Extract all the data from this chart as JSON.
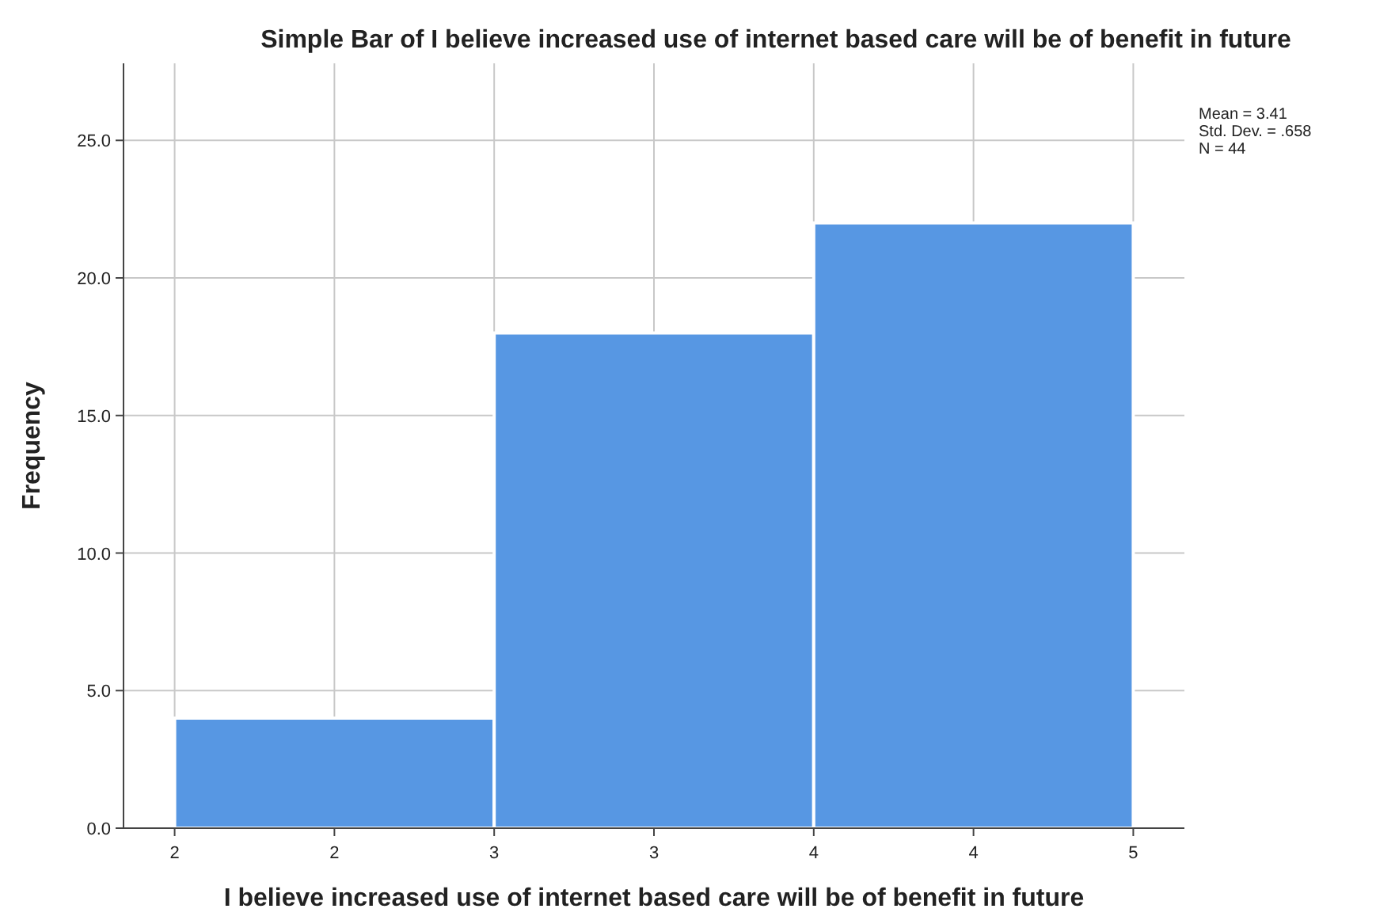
{
  "chart_data": {
    "type": "histogram",
    "title": "Simple Bar of I believe increased use of internet based care will be of benefit in future",
    "xlabel": "I believe increased use of internet based care will be of benefit in future",
    "ylabel": "Frequency",
    "bins": [
      2,
      3,
      4,
      5
    ],
    "values": [
      4,
      18,
      22
    ],
    "color": "#5797e3",
    "xlim": [
      1.84,
      5.16
    ],
    "xticks": [
      {
        "value": 2,
        "label": "2"
      },
      {
        "value": 2.5,
        "label": "2"
      },
      {
        "value": 3,
        "label": "3"
      },
      {
        "value": 3.5,
        "label": "3"
      },
      {
        "value": 4,
        "label": "4"
      },
      {
        "value": 4.5,
        "label": "4"
      },
      {
        "value": 5,
        "label": "5"
      }
    ],
    "ylim": [
      0,
      27.8
    ],
    "yticks": [
      {
        "value": 0,
        "label": "0.0"
      },
      {
        "value": 5,
        "label": "5.0"
      },
      {
        "value": 10,
        "label": "10.0"
      },
      {
        "value": 15,
        "label": "15.0"
      },
      {
        "value": 20,
        "label": "20.0"
      },
      {
        "value": 25,
        "label": "25.0"
      }
    ],
    "grid": true,
    "annotations": [
      "Mean = 3.41",
      "Std. Dev. = .658",
      "N = 44"
    ]
  }
}
